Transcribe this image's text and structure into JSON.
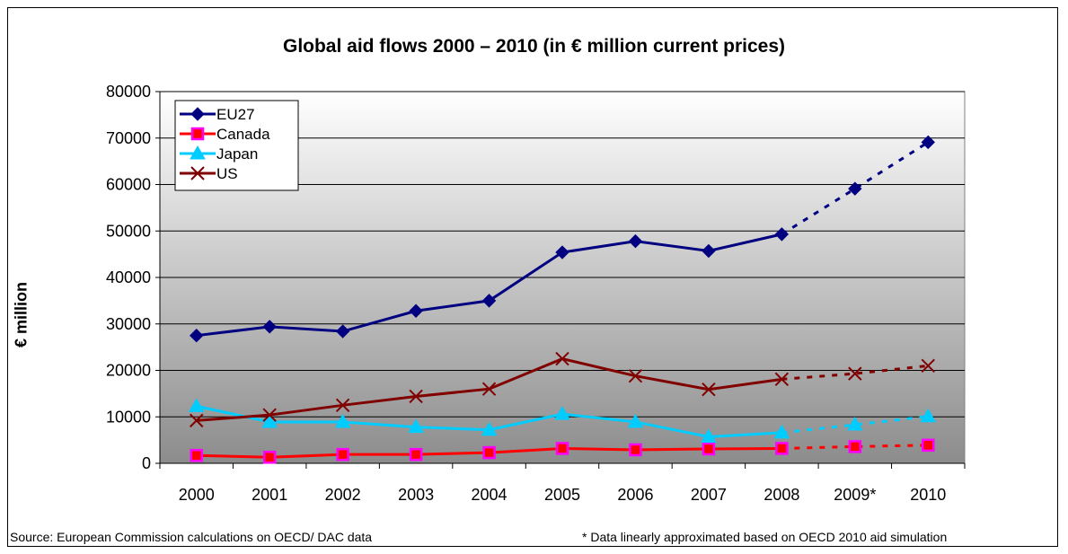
{
  "chart_data": {
    "type": "line",
    "title": "Global aid flows 2000 – 2010 (in € million current prices)",
    "ylabel": "€ million",
    "xlabel": "",
    "categories": [
      "2000",
      "2001",
      "2002",
      "2003",
      "2004",
      "2005",
      "2006",
      "2007",
      "2008",
      "2009*",
      "2010"
    ],
    "ylim": [
      0,
      80000
    ],
    "yticks": [
      "0",
      "10000",
      "20000",
      "30000",
      "40000",
      "50000",
      "60000",
      "70000",
      "80000"
    ],
    "grid": true,
    "legend_position": "top-left",
    "dashed_from_index": 8,
    "series": [
      {
        "name": "EU27",
        "color": "#000080",
        "marker": "diamond",
        "values": [
          27500,
          29400,
          28400,
          32800,
          35000,
          45400,
          47800,
          45700,
          49300,
          59100,
          69100
        ]
      },
      {
        "name": "Canada",
        "color": "#ff0000",
        "marker_fill": "#ff00ff",
        "marker": "square",
        "values": [
          1700,
          1300,
          1900,
          1900,
          2300,
          3200,
          2900,
          3100,
          3200,
          3600,
          3900
        ]
      },
      {
        "name": "Japan",
        "color": "#00ccff",
        "marker": "triangle",
        "values": [
          12300,
          8900,
          8900,
          7800,
          7200,
          10600,
          8900,
          5700,
          6600,
          8300,
          10100
        ]
      },
      {
        "name": "US",
        "color": "#800000",
        "marker": "x",
        "values": [
          9200,
          10400,
          12500,
          14400,
          16000,
          22500,
          18800,
          15900,
          18100,
          19300,
          21000
        ]
      }
    ]
  },
  "notes": {
    "source": "Source: European Commission calculations on OECD/ DAC data",
    "footnote": "* Data linearly approximated based on OECD 2010 aid simulation"
  }
}
